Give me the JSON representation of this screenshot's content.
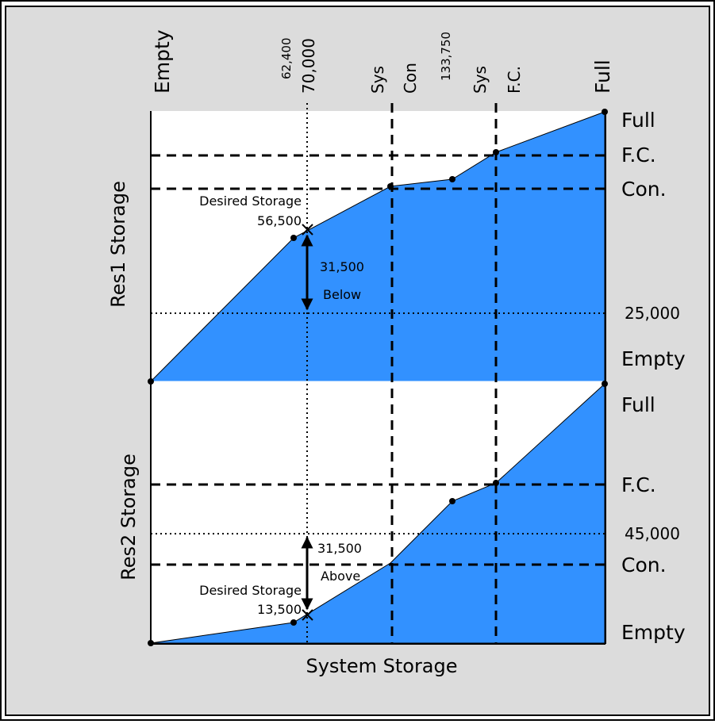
{
  "colors": {
    "fill": "#3291FF",
    "frame_bg": "#DCDCDC",
    "panel_bg": "#FFFFFF",
    "line": "#000000"
  },
  "top_labels": {
    "empty": "Empty",
    "tick_62400": "62,400",
    "tick_70000": "70,000",
    "sys1": "Sys",
    "con": "Con",
    "tick_133750": "133,750",
    "sys2": "Sys",
    "fc": "F.C.",
    "full": "Full"
  },
  "res1": {
    "axis_label": "Res1 Storage",
    "levels": {
      "full": "Full",
      "fc": "F.C.",
      "con": "Con.",
      "value": "25,000",
      "empty": "Empty"
    },
    "desired_label": "Desired Storage",
    "desired_value": "56,500",
    "arrow_value": "31,500",
    "arrow_direction": "Below"
  },
  "res2": {
    "axis_label": "Res2 Storage",
    "levels": {
      "full": "Full",
      "fc": "F.C.",
      "value": "45,000",
      "con": "Con.",
      "empty": "Empty"
    },
    "desired_label": "Desired Storage",
    "desired_value": "13,500",
    "arrow_value": "31,500",
    "arrow_direction": "Above"
  },
  "x_axis_label": "System Storage"
}
